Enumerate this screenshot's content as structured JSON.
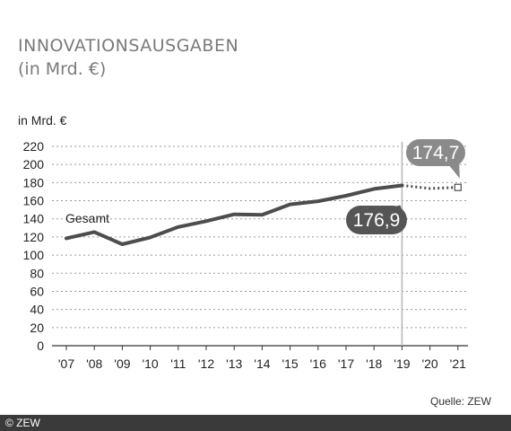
{
  "header": {
    "title": "INNOVATIONSAUSGABEN",
    "subtitle": "(in Mrd. €)"
  },
  "source": "Quelle: ZEW",
  "footer": "© ZEW",
  "colors": {
    "line": "#4d4d4d",
    "callout_light": "#8a8a8a",
    "callout_dark": "#555555",
    "grid": "#9a9a9a"
  },
  "chart_data": {
    "type": "line",
    "title": "INNOVATIONSAUSGABEN",
    "subtitle": "(in Mrd. €)",
    "ylabel": "in Mrd. €",
    "xlabel": "",
    "ylim": [
      0,
      220
    ],
    "yticks": [
      0,
      20,
      40,
      60,
      80,
      100,
      120,
      140,
      160,
      180,
      200,
      220
    ],
    "categories": [
      "'07",
      "'08",
      "'09",
      "'10",
      "'11",
      "'12",
      "'13",
      "'14",
      "'15",
      "'16",
      "'17",
      "'18",
      "'19",
      "'20",
      "'21"
    ],
    "grid": true,
    "series": [
      {
        "name": "Gesamt",
        "style": "solid",
        "x": [
          "'07",
          "'08",
          "'09",
          "'10",
          "'11",
          "'12",
          "'13",
          "'14",
          "'15",
          "'16",
          "'17",
          "'18",
          "'19"
        ],
        "values": [
          118.5,
          125.5,
          112,
          119.5,
          131,
          137.5,
          145,
          144.5,
          156,
          159.5,
          165.5,
          173,
          176.9
        ]
      },
      {
        "name": "",
        "style": "dotted",
        "x": [
          "'19",
          "'20",
          "'21"
        ],
        "values": [
          176.9,
          173.5,
          174.7
        ]
      }
    ],
    "annotations": [
      {
        "text": "176,9",
        "x": "'19",
        "value": 176.9
      },
      {
        "text": "174,7",
        "x": "'21",
        "value": 174.7
      }
    ],
    "vline_at": "'19"
  }
}
